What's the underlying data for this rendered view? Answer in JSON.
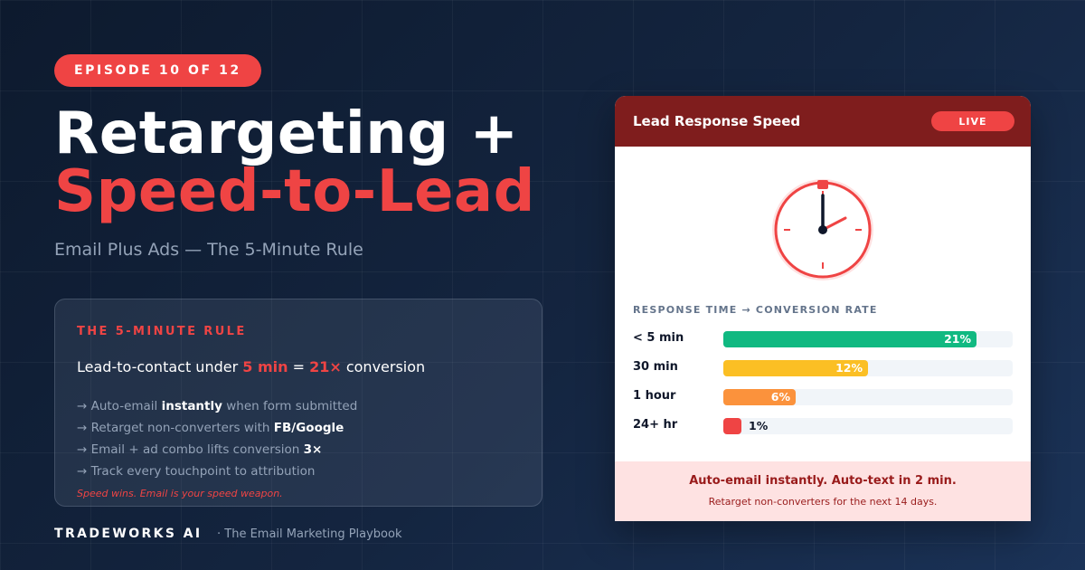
{
  "episode_badge": "EPISODE 10 OF 12",
  "title": {
    "line1": "Retargeting +",
    "line2": "Speed-to-Lead"
  },
  "subtitle": "Email Plus Ads — The 5-Minute Rule",
  "rule": {
    "heading": "THE 5-MINUTE RULE",
    "main": {
      "prefix": "Lead-to-contact under ",
      "time": "5 min",
      "equals": " = ",
      "multiplier": "21×",
      "suffix": " conversion"
    },
    "bullets": [
      {
        "pre": "→ Auto-email ",
        "bold": "instantly",
        "post": " when form submitted"
      },
      {
        "pre": "→ Retarget non-converters with ",
        "bold": "FB/Google",
        "post": ""
      },
      {
        "pre": "→ Email + ad combo lifts conversion ",
        "bold": "3×",
        "post": ""
      },
      {
        "pre": "→ Track every touchpoint to attribution",
        "bold": "",
        "post": ""
      }
    ],
    "footnote": "Speed wins. Email is your speed weapon."
  },
  "brand": {
    "name": "TRADEWORKS AI",
    "tagline": "· The Email Marketing Playbook"
  },
  "card": {
    "title": "Lead Response Speed",
    "live_badge": "LIVE",
    "clock_icon": "clock-icon",
    "section_label": "RESPONSE TIME → CONVERSION RATE",
    "footer_main": "Auto-email instantly. Auto-text in 2 min.",
    "footer_sub": "Retarget non-converters for the next 14 days."
  },
  "colors": {
    "accent_red": "#ef4444",
    "header_dark_red": "#7f1d1d",
    "bar_green": "#10b981",
    "bar_yellow": "#fbbf24",
    "bar_orange": "#fb923c",
    "bar_red": "#ef4444"
  },
  "chart_data": {
    "type": "bar",
    "categories": [
      "< 5 min",
      "30 min",
      "1 hour",
      "24+ hr"
    ],
    "values": [
      21,
      12,
      6,
      1
    ],
    "value_labels": [
      "21%",
      "12%",
      "6%",
      "1%"
    ],
    "colors": [
      "#10b981",
      "#fbbf24",
      "#fb923c",
      "#ef4444"
    ],
    "title": "RESPONSE TIME → CONVERSION RATE",
    "xlim": [
      0,
      24
    ]
  }
}
